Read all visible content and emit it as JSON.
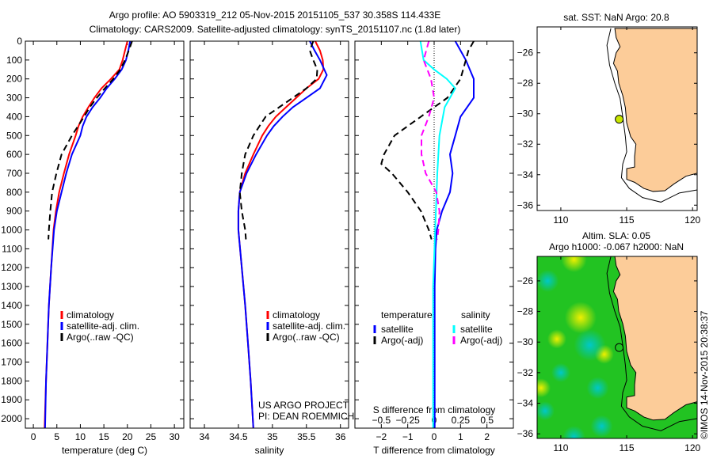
{
  "title_line1": "Argo profile: AO 5903319_212 05-Nov-2015 20151105_537 30.358S 114.433E",
  "title_line2": "Climatology: CARS2009. Satellite-adjusted climatology: synTS_20151107.nc (1.8d later)",
  "colors": {
    "climatology": "#ff0000",
    "satellite": "#0000ff",
    "argo": "#000000",
    "sal_satellite": "#00ffff",
    "sal_argo": "#ff00ff",
    "land": "#fccc99"
  },
  "chart_data": [
    {
      "type": "line",
      "name": "temperature-profile",
      "xlabel": "temperature (deg C)",
      "ylabel": "",
      "xlim": [
        -1.7,
        32
      ],
      "ylim": [
        2050,
        0
      ],
      "xticks": [
        0,
        5,
        10,
        15,
        20,
        25,
        30
      ],
      "yticks": [
        0,
        100,
        200,
        300,
        400,
        500,
        600,
        700,
        800,
        900,
        1000,
        1100,
        1200,
        1300,
        1400,
        1500,
        1600,
        1700,
        1800,
        1900,
        2000
      ],
      "legend": [
        "climatology",
        "satellite-adj. clim.",
        "Argo(..raw -QC)"
      ],
      "series": [
        {
          "name": "climatology",
          "color": "#ff0000",
          "dash": false,
          "depth": [
            0,
            50,
            100,
            150,
            200,
            250,
            300,
            350,
            400,
            450,
            500,
            600,
            700,
            800,
            900,
            1000,
            1200,
            1400,
            1600,
            1800,
            2050
          ],
          "values": [
            20.0,
            19.5,
            19.0,
            18.3,
            16.5,
            14.5,
            13.0,
            11.7,
            10.5,
            9.6,
            9.0,
            7.6,
            6.5,
            5.5,
            4.8,
            4.3,
            3.8,
            3.3,
            3.0,
            2.7,
            2.4
          ]
        },
        {
          "name": "satellite-adj. clim.",
          "color": "#0000ff",
          "dash": false,
          "depth": [
            0,
            50,
            100,
            150,
            200,
            250,
            300,
            350,
            400,
            450,
            500,
            600,
            700,
            800,
            900,
            1000,
            1200,
            1400,
            1600,
            1800,
            2050
          ],
          "values": [
            20.6,
            20.2,
            19.7,
            18.8,
            17.3,
            15.6,
            14.2,
            12.6,
            11.3,
            10.5,
            10.0,
            8.2,
            7.0,
            6.0,
            5.0,
            4.4,
            3.8,
            3.3,
            3.0,
            2.7,
            2.5
          ]
        },
        {
          "name": "Argo(..raw -QC)",
          "color": "#000000",
          "dash": true,
          "depth": [
            0,
            50,
            100,
            150,
            200,
            250,
            300,
            350,
            400,
            450,
            500,
            600,
            700,
            800,
            900,
            1000,
            1050
          ],
          "values": [
            21.0,
            20.3,
            19.5,
            18.5,
            17.0,
            15.2,
            13.5,
            12.0,
            10.8,
            9.5,
            8.2,
            6.0,
            4.9,
            4.0,
            3.6,
            3.3,
            3.2
          ]
        }
      ]
    },
    {
      "type": "line",
      "name": "salinity-profile",
      "xlabel": "salinity",
      "xlim": [
        33.79,
        36.12
      ],
      "ylim": [
        2050,
        0
      ],
      "xticks": [
        34,
        34.5,
        35,
        35.5,
        36
      ],
      "legend": [
        "climatology",
        "satellite-adj. clim.",
        "Argo(..raw -QC)"
      ],
      "annotation": [
        "US ARGO PROJECT",
        "PI: DEAN ROEMMICH"
      ],
      "series": [
        {
          "name": "climatology",
          "color": "#ff0000",
          "dash": false,
          "depth": [
            0,
            50,
            100,
            150,
            200,
            250,
            300,
            350,
            400,
            450,
            500,
            600,
            700,
            800,
            900,
            1000,
            1200,
            1400,
            1600,
            1800,
            2050
          ],
          "values": [
            35.63,
            35.7,
            35.74,
            35.75,
            35.68,
            35.5,
            35.35,
            35.2,
            35.05,
            34.94,
            34.85,
            34.72,
            34.6,
            34.52,
            34.5,
            34.5,
            34.55,
            34.6,
            34.64,
            34.68,
            34.72
          ]
        },
        {
          "name": "satellite-adj. clim.",
          "color": "#0000ff",
          "dash": false,
          "depth": [
            0,
            50,
            100,
            180,
            250,
            300,
            350,
            400,
            450,
            500,
            600,
            700,
            800,
            900,
            1000,
            1200,
            1400,
            1600,
            1800,
            2050
          ],
          "values": [
            35.55,
            35.62,
            35.7,
            35.8,
            35.7,
            35.5,
            35.3,
            35.15,
            35.02,
            34.92,
            34.76,
            34.62,
            34.52,
            34.5,
            34.5,
            34.55,
            34.6,
            34.64,
            34.68,
            34.72
          ]
        },
        {
          "name": "Argo(..raw -QC)",
          "color": "#000000",
          "dash": true,
          "depth": [
            0,
            50,
            100,
            150,
            200,
            250,
            300,
            350,
            400,
            500,
            600,
            700,
            800,
            900,
            1000,
            1050
          ],
          "values": [
            35.6,
            35.55,
            35.6,
            35.66,
            35.65,
            35.5,
            35.3,
            35.1,
            34.9,
            34.72,
            34.6,
            34.55,
            34.52,
            34.55,
            34.6,
            34.61
          ]
        }
      ]
    },
    {
      "type": "line",
      "name": "difference-profile",
      "xlabel": "T difference from climatology",
      "x2label": "S difference from climatology",
      "xlim": [
        -3,
        3
      ],
      "x2lim": [
        -0.75,
        0.75
      ],
      "ylim": [
        2050,
        0
      ],
      "xticks": [
        -2,
        -1,
        0,
        1,
        2
      ],
      "x2ticks": [
        -0.5,
        -0.25,
        0,
        0.25,
        0.5
      ],
      "legend_headers": [
        "temperature",
        "salinity"
      ],
      "legend": [
        "satellite",
        "Argo(-adj)",
        "satellite",
        "Argo(-adj)"
      ],
      "series": [
        {
          "name": "T satellite",
          "color": "#0000ff",
          "axis": "T",
          "dash": false,
          "depth": [
            0,
            100,
            200,
            300,
            400,
            500,
            600,
            700,
            800,
            900,
            1000,
            1100,
            1300,
            2050
          ],
          "values": [
            0.8,
            1.2,
            1.5,
            1.5,
            1.0,
            0.8,
            0.6,
            0.7,
            0.6,
            0.3,
            0.1,
            0.05,
            0.02,
            0.02
          ]
        },
        {
          "name": "T Argo(-adj)",
          "color": "#000000",
          "axis": "T",
          "dash": true,
          "depth": [
            0,
            50,
            100,
            200,
            300,
            350,
            400,
            500,
            600,
            650,
            700,
            800,
            900,
            1000,
            1050
          ],
          "values": [
            1.5,
            1.3,
            1.2,
            1.0,
            0.5,
            0.0,
            -0.5,
            -1.5,
            -1.9,
            -2.0,
            -1.6,
            -1.0,
            -0.5,
            -0.2,
            -0.1
          ]
        },
        {
          "name": "S satellite",
          "color": "#00ffff",
          "axis": "S",
          "dash": false,
          "depth": [
            0,
            100,
            150,
            200,
            250,
            350,
            500,
            700,
            1000,
            1300,
            2050
          ],
          "values": [
            -0.13,
            -0.1,
            0.0,
            0.12,
            0.2,
            0.1,
            0.05,
            0.03,
            0.01,
            -0.01,
            -0.01
          ]
        },
        {
          "name": "S Argo(-adj)",
          "color": "#ff00ff",
          "axis": "S",
          "dash": true,
          "depth": [
            0,
            100,
            200,
            300,
            400,
            500,
            600,
            700,
            800,
            900,
            1000,
            1050
          ],
          "values": [
            -0.05,
            -0.1,
            -0.03,
            0.0,
            -0.05,
            -0.12,
            -0.12,
            -0.08,
            0.02,
            0.05,
            0.04,
            0.03
          ]
        }
      ]
    }
  ],
  "map_top": {
    "title": "sat. SST: NaN Argo: 20.8",
    "xticks": [
      110,
      115,
      120
    ],
    "yticks": [
      -26,
      -28,
      -30,
      -32,
      -34,
      -36
    ],
    "argo_lon": 114.433,
    "argo_lat": -30.358
  },
  "map_bottom": {
    "title1": "Altim. SLA: 0.05",
    "title2": "Argo h1000: -0.067 h2000: NaN",
    "xticks": [
      110,
      115,
      120
    ],
    "yticks": [
      -26,
      -28,
      -30,
      -32,
      -34,
      -36
    ]
  },
  "footer": "©IMOS 14-Nov-2015 20:38:37"
}
